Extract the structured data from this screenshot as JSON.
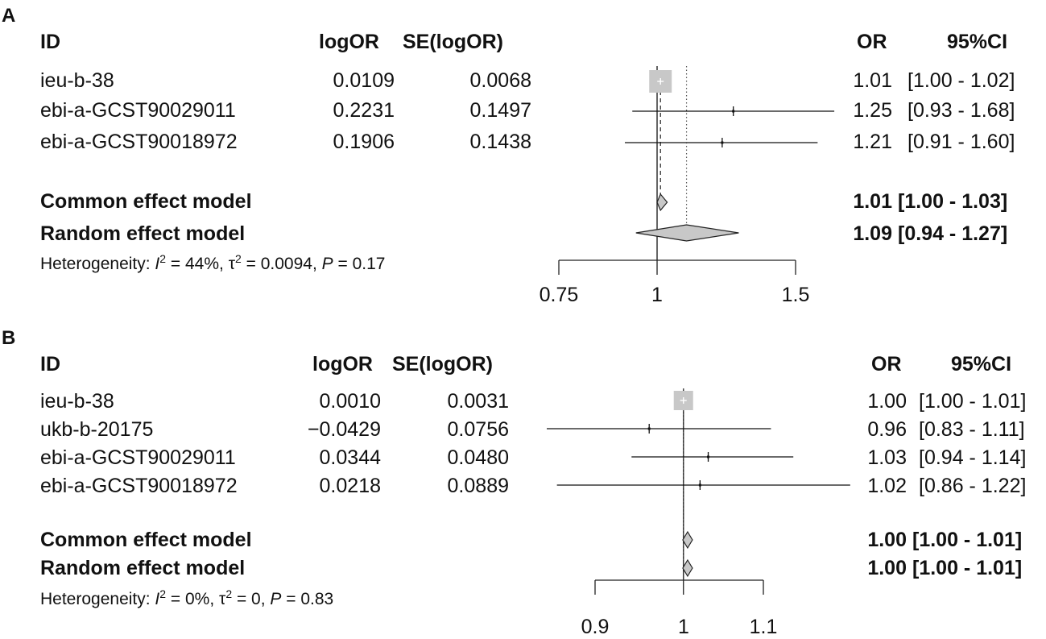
{
  "panels": [
    {
      "letter": "A",
      "headers": {
        "id": "ID",
        "logor": "logOR",
        "se": "SE(logOR)",
        "or": "OR",
        "ci": "95%CI"
      },
      "studies": [
        {
          "id": "ieu-b-38",
          "logor": "0.0109",
          "se": "0.0068",
          "or_text": "1.01",
          "ci_text": "[1.00 - 1.02]",
          "or": 1.01,
          "lower": 1.0,
          "upper": 1.02,
          "is_square_large": true
        },
        {
          "id": "ebi-a-GCST90029011",
          "logor": "0.2231",
          "se": "0.1497",
          "or_text": "1.25",
          "ci_text": "[0.93 - 1.68]",
          "or": 1.25,
          "lower": 0.93,
          "upper": 1.68
        },
        {
          "id": "ebi-a-GCST90018972",
          "logor": "0.1906",
          "se": "0.1438",
          "or_text": "1.21",
          "ci_text": "[0.91 - 1.60]",
          "or": 1.21,
          "lower": 0.91,
          "upper": 1.6
        }
      ],
      "models": [
        {
          "label": "Common effect model",
          "or_text": "1.01",
          "ci_text": "[1.00 - 1.03]",
          "or": 1.01,
          "lower": 1.0,
          "upper": 1.03
        },
        {
          "label": "Random effect model",
          "or_text": "1.09",
          "ci_text": "[0.94 - 1.27]",
          "or": 1.09,
          "lower": 0.94,
          "upper": 1.27
        }
      ],
      "heterogeneity": {
        "prefix": "Heterogeneity: ",
        "i2_sym": "I",
        "i2_value": " = 44%,  ",
        "tau2_sym": "τ",
        "tau2_value": " = 0.0094, ",
        "p_sym": "P",
        "p_value": " = 0.17"
      },
      "axis": {
        "ticks": [
          0.75,
          1,
          1.5
        ],
        "tick_labels": [
          "0.75",
          "1",
          "1.5"
        ],
        "log_scale": true
      }
    },
    {
      "letter": "B",
      "headers": {
        "id": "ID",
        "logor": "logOR",
        "se": "SE(logOR)",
        "or": "OR",
        "ci": "95%CI"
      },
      "studies": [
        {
          "id": "ieu-b-38",
          "logor": "0.0010",
          "se": "0.0031",
          "or_text": "1.00",
          "ci_text": "[1.00 - 1.01]",
          "or": 1.0,
          "lower": 1.0,
          "upper": 1.01,
          "is_square_large": true
        },
        {
          "id": "ukb-b-20175",
          "logor": "−0.0429",
          "se": "0.0756",
          "or_text": "0.96",
          "ci_text": "[0.83 - 1.11]",
          "or": 0.96,
          "lower": 0.83,
          "upper": 1.11
        },
        {
          "id": "ebi-a-GCST90029011",
          "logor": "0.0344",
          "se": "0.0480",
          "or_text": "1.03",
          "ci_text": "[0.94 - 1.14]",
          "or": 1.03,
          "lower": 0.94,
          "upper": 1.14
        },
        {
          "id": "ebi-a-GCST90018972",
          "logor": "0.0218",
          "se": "0.0889",
          "or_text": "1.02",
          "ci_text": "[0.86 - 1.22]",
          "or": 1.02,
          "lower": 0.86,
          "upper": 1.22
        }
      ],
      "models": [
        {
          "label": "Common effect model",
          "or_text": "1.00",
          "ci_text": "[1.00 - 1.01]",
          "or": 1.0,
          "lower": 1.0,
          "upper": 1.01
        },
        {
          "label": "Random effect model",
          "or_text": "1.00",
          "ci_text": "[1.00 - 1.01]",
          "or": 1.0,
          "lower": 1.0,
          "upper": 1.01
        }
      ],
      "heterogeneity": {
        "prefix": "Heterogeneity: ",
        "i2_sym": "I",
        "i2_value": " = 0%,  ",
        "tau2_sym": "τ",
        "tau2_value": " = 0, ",
        "p_sym": "P",
        "p_value": " = 0.83"
      },
      "axis": {
        "ticks": [
          0.9,
          1,
          1.1
        ],
        "tick_labels": [
          "0.9",
          "1",
          "1.1"
        ],
        "log_scale": true
      }
    }
  ],
  "chart_data": [
    {
      "type": "forest",
      "title": "",
      "xlabel": "",
      "ylabel": "",
      "x_scale": "log",
      "xlim": [
        0.75,
        1.5
      ],
      "null_line": 1,
      "categories": [
        "ieu-b-38",
        "ebi-a-GCST90029011",
        "ebi-a-GCST90018972",
        "Common effect model",
        "Random effect model"
      ],
      "values": [
        1.01,
        1.25,
        1.21,
        1.01,
        1.09
      ],
      "lower": [
        1.0,
        0.93,
        0.91,
        1.0,
        0.94
      ],
      "upper": [
        1.02,
        1.68,
        1.6,
        1.03,
        1.27
      ]
    },
    {
      "type": "forest",
      "title": "",
      "xlabel": "",
      "ylabel": "",
      "x_scale": "log",
      "xlim": [
        0.9,
        1.1
      ],
      "null_line": 1,
      "categories": [
        "ieu-b-38",
        "ukb-b-20175",
        "ebi-a-GCST90029011",
        "ebi-a-GCST90018972",
        "Common effect model",
        "Random effect model"
      ],
      "values": [
        1.0,
        0.96,
        1.03,
        1.02,
        1.0,
        1.0
      ],
      "lower": [
        1.0,
        0.83,
        0.94,
        0.86,
        1.0,
        1.0
      ],
      "upper": [
        1.01,
        1.11,
        1.14,
        1.22,
        1.01,
        1.01
      ]
    }
  ],
  "colors": {
    "square": "#c8c8c8",
    "diamond": "#c8c8c8",
    "line": "#111111",
    "text": "#111111"
  }
}
